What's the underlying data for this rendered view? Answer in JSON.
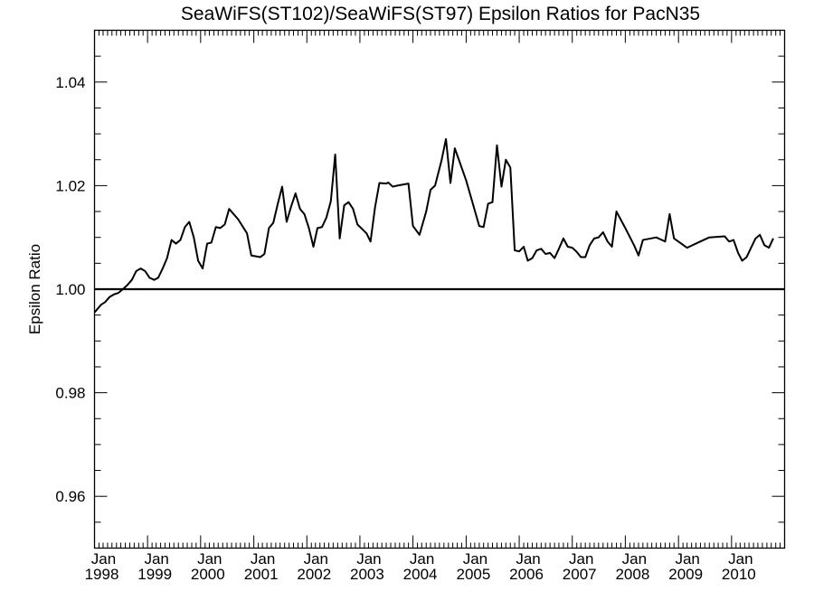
{
  "chart_data": {
    "type": "line",
    "title": "SeaWiFS(ST102)/SeaWiFS(ST97)  Epsilon Ratios for PacN35",
    "xlabel": "",
    "ylabel": "Epsilon Ratio",
    "xlim": [
      "1998-01-01",
      "2011-01-01"
    ],
    "ylim": [
      0.95,
      1.05
    ],
    "grid": false,
    "y_ticks": [
      "0.96",
      "0.98",
      "1.00",
      "1.02",
      "1.04"
    ],
    "y_tick_values": [
      0.96,
      0.98,
      1.0,
      1.02,
      1.04
    ],
    "x_tick_month": "Jan",
    "x_tick_years": [
      "1998",
      "1999",
      "2000",
      "2001",
      "2002",
      "2003",
      "2004",
      "2005",
      "2006",
      "2007",
      "2008",
      "2009",
      "2010"
    ],
    "reference_line": {
      "y": 1.0
    },
    "series": [
      {
        "color": "#000000",
        "points": [
          [
            "1998-01-01",
            0.9955
          ],
          [
            "1998-02-15",
            0.997
          ],
          [
            "1998-03-15",
            0.9975
          ],
          [
            "1998-04-15",
            0.9985
          ],
          [
            "1998-05-15",
            0.999
          ],
          [
            "1998-06-15",
            0.9993
          ],
          [
            "1998-07-15",
            1.0
          ],
          [
            "1998-08-15",
            1.0008
          ],
          [
            "1998-09-15",
            1.0018
          ],
          [
            "1998-10-15",
            1.0035
          ],
          [
            "1998-11-15",
            1.004
          ],
          [
            "1998-12-15",
            1.0035
          ],
          [
            "1999-01-15",
            1.0022
          ],
          [
            "1999-02-15",
            1.0018
          ],
          [
            "1999-03-15",
            1.0022
          ],
          [
            "1999-04-15",
            1.004
          ],
          [
            "1999-05-15",
            1.006
          ],
          [
            "1999-06-15",
            1.0095
          ],
          [
            "1999-07-15",
            1.0088
          ],
          [
            "1999-08-15",
            1.0095
          ],
          [
            "1999-09-15",
            1.012
          ],
          [
            "1999-10-15",
            1.013
          ],
          [
            "1999-11-15",
            1.01
          ],
          [
            "1999-12-15",
            1.0055
          ],
          [
            "2000-01-15",
            1.004
          ],
          [
            "2000-02-15",
            1.0088
          ],
          [
            "2000-03-15",
            1.009
          ],
          [
            "2000-04-15",
            1.012
          ],
          [
            "2000-05-15",
            1.0118
          ],
          [
            "2000-06-15",
            1.0125
          ],
          [
            "2000-07-15",
            1.0155
          ],
          [
            "2000-09-15",
            1.0135
          ],
          [
            "2000-11-15",
            1.0108
          ],
          [
            "2000-12-15",
            1.0065
          ],
          [
            "2001-02-15",
            1.0062
          ],
          [
            "2001-03-15",
            1.0068
          ],
          [
            "2001-04-15",
            1.0118
          ],
          [
            "2001-05-15",
            1.0128
          ],
          [
            "2001-06-15",
            1.0165
          ],
          [
            "2001-07-15",
            1.0198
          ],
          [
            "2001-08-15",
            1.013
          ],
          [
            "2001-09-15",
            1.016
          ],
          [
            "2001-10-15",
            1.0185
          ],
          [
            "2001-11-15",
            1.0155
          ],
          [
            "2001-12-15",
            1.0145
          ],
          [
            "2002-01-15",
            1.0118
          ],
          [
            "2002-02-15",
            1.0082
          ],
          [
            "2002-03-15",
            1.0118
          ],
          [
            "2002-04-15",
            1.012
          ],
          [
            "2002-05-15",
            1.0138
          ],
          [
            "2002-06-15",
            1.017
          ],
          [
            "2002-07-15",
            1.026
          ],
          [
            "2002-08-15",
            1.0098
          ],
          [
            "2002-09-15",
            1.0162
          ],
          [
            "2002-10-15",
            1.0168
          ],
          [
            "2002-11-15",
            1.0155
          ],
          [
            "2002-12-15",
            1.0125
          ],
          [
            "2003-02-15",
            1.0108
          ],
          [
            "2003-03-15",
            1.0092
          ],
          [
            "2003-04-15",
            1.0158
          ],
          [
            "2003-05-15",
            1.0205
          ],
          [
            "2003-07-01",
            1.0204
          ],
          [
            "2003-07-15",
            1.0206
          ],
          [
            "2003-08-15",
            1.0198
          ],
          [
            "2003-09-15",
            1.02
          ],
          [
            "2003-12-01",
            1.0204
          ],
          [
            "2004-01-01",
            1.0122
          ],
          [
            "2004-02-15",
            1.0105
          ],
          [
            "2004-04-01",
            1.015
          ],
          [
            "2004-05-01",
            1.0192
          ],
          [
            "2004-06-01",
            1.02
          ],
          [
            "2004-07-15",
            1.0248
          ],
          [
            "2004-08-15",
            1.029
          ],
          [
            "2004-09-15",
            1.0205
          ],
          [
            "2004-10-15",
            1.0272
          ],
          [
            "2005-01-01",
            1.021
          ],
          [
            "2005-04-01",
            1.0122
          ],
          [
            "2005-05-01",
            1.012
          ],
          [
            "2005-06-01",
            1.0165
          ],
          [
            "2005-07-01",
            1.0168
          ],
          [
            "2005-08-01",
            1.0278
          ],
          [
            "2005-09-01",
            1.0198
          ],
          [
            "2005-10-01",
            1.025
          ],
          [
            "2005-11-01",
            1.0235
          ],
          [
            "2005-12-01",
            1.0075
          ],
          [
            "2006-01-01",
            1.0073
          ],
          [
            "2006-02-01",
            1.0082
          ],
          [
            "2006-03-01",
            1.0055
          ],
          [
            "2006-04-01",
            1.006
          ],
          [
            "2006-05-01",
            1.0075
          ],
          [
            "2006-06-01",
            1.0078
          ],
          [
            "2006-07-01",
            1.0068
          ],
          [
            "2006-08-01",
            1.007
          ],
          [
            "2006-09-01",
            1.006
          ],
          [
            "2006-10-01",
            1.0078
          ],
          [
            "2006-11-01",
            1.0098
          ],
          [
            "2006-12-01",
            1.0082
          ],
          [
            "2007-01-01",
            1.008
          ],
          [
            "2007-02-01",
            1.0072
          ],
          [
            "2007-03-01",
            1.0062
          ],
          [
            "2007-04-01",
            1.0062
          ],
          [
            "2007-05-01",
            1.0085
          ],
          [
            "2007-06-01",
            1.0098
          ],
          [
            "2007-07-01",
            1.01
          ],
          [
            "2007-08-01",
            1.011
          ],
          [
            "2007-09-01",
            1.0092
          ],
          [
            "2007-10-01",
            1.0082
          ],
          [
            "2007-11-01",
            1.015
          ],
          [
            "2008-01-01",
            1.0118
          ],
          [
            "2008-03-01",
            1.0085
          ],
          [
            "2008-04-01",
            1.0065
          ],
          [
            "2008-05-01",
            1.0095
          ],
          [
            "2008-08-01",
            1.01
          ],
          [
            "2008-10-01",
            1.0092
          ],
          [
            "2008-11-01",
            1.0145
          ],
          [
            "2008-12-01",
            1.0098
          ],
          [
            "2009-03-01",
            1.008
          ],
          [
            "2009-05-15",
            1.009
          ],
          [
            "2009-08-01",
            1.01
          ],
          [
            "2009-11-15",
            1.0102
          ],
          [
            "2009-12-15",
            1.0092
          ],
          [
            "2010-01-15",
            1.0095
          ],
          [
            "2010-02-15",
            1.007
          ],
          [
            "2010-03-15",
            1.0055
          ],
          [
            "2010-04-15",
            1.0062
          ],
          [
            "2010-05-15",
            1.008
          ],
          [
            "2010-06-15",
            1.0098
          ],
          [
            "2010-07-15",
            1.0105
          ],
          [
            "2010-08-15",
            1.0085
          ],
          [
            "2010-09-15",
            1.008
          ],
          [
            "2010-10-15",
            1.0098
          ]
        ]
      }
    ]
  }
}
